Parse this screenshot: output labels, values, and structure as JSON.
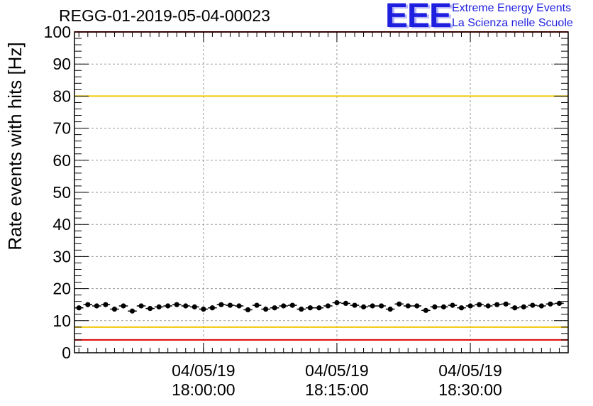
{
  "header": {
    "title": "REGG-01-2019-05-04-00023"
  },
  "logo": {
    "letters": "EEE",
    "line1": "Extreme Energy Events",
    "line2": "La Scienza nelle Scuole",
    "color": "#1f1fe0"
  },
  "chart_data": {
    "type": "scatter",
    "ylabel": "Rate events with hits [Hz]",
    "xlabel": "",
    "ylim": [
      0,
      100
    ],
    "yticks": [
      0,
      10,
      20,
      30,
      40,
      50,
      60,
      70,
      80,
      90,
      100
    ],
    "xlim": [
      "04/05/19 17:45:30",
      "04/05/19 18:41:00"
    ],
    "xticks": [
      {
        "date": "04/05/19",
        "time": "18:00:00"
      },
      {
        "date": "04/05/19",
        "time": "18:15:00"
      },
      {
        "date": "04/05/19",
        "time": "18:30:00"
      }
    ],
    "grid": true,
    "reference_lines": [
      {
        "y": 100,
        "color": "#e00000"
      },
      {
        "y": 80,
        "color": "#f0c800"
      },
      {
        "y": 8,
        "color": "#f0c800"
      },
      {
        "y": 4,
        "color": "#e00000"
      }
    ],
    "series": [
      {
        "marker_color": "#000000",
        "x": [
          "17:46:00",
          "17:47:00",
          "17:48:00",
          "17:49:00",
          "17:50:00",
          "17:51:00",
          "17:52:00",
          "17:53:00",
          "17:54:00",
          "17:55:00",
          "17:56:00",
          "17:57:00",
          "17:58:00",
          "17:59:00",
          "18:00:00",
          "18:01:00",
          "18:02:00",
          "18:03:00",
          "18:04:00",
          "18:05:00",
          "18:06:00",
          "18:07:00",
          "18:08:00",
          "18:09:00",
          "18:10:00",
          "18:11:00",
          "18:12:00",
          "18:13:00",
          "18:14:00",
          "18:15:00",
          "18:16:00",
          "18:17:00",
          "18:18:00",
          "18:19:00",
          "18:20:00",
          "18:21:00",
          "18:22:00",
          "18:23:00",
          "18:24:00",
          "18:25:00",
          "18:26:00",
          "18:27:00",
          "18:28:00",
          "18:29:00",
          "18:30:00",
          "18:31:00",
          "18:32:00",
          "18:33:00",
          "18:34:00",
          "18:35:00",
          "18:36:00",
          "18:37:00",
          "18:38:00",
          "18:39:00",
          "18:40:00"
        ],
        "y": [
          14.0,
          15.0,
          14.6,
          15.0,
          13.6,
          14.6,
          13.0,
          14.6,
          13.8,
          14.3,
          14.6,
          15.0,
          14.6,
          14.3,
          13.6,
          14.0,
          15.0,
          14.8,
          14.6,
          13.4,
          14.8,
          13.6,
          14.0,
          14.6,
          14.8,
          13.6,
          14.0,
          14.0,
          14.6,
          15.6,
          15.4,
          14.8,
          14.3,
          14.6,
          14.6,
          13.6,
          15.2,
          14.6,
          14.6,
          13.2,
          14.3,
          14.3,
          14.8,
          14.0,
          14.6,
          15.0,
          14.6,
          15.0,
          15.2,
          14.0,
          14.3,
          14.8,
          14.6,
          15.2,
          15.4
        ],
        "y_error": 0.6
      }
    ]
  }
}
